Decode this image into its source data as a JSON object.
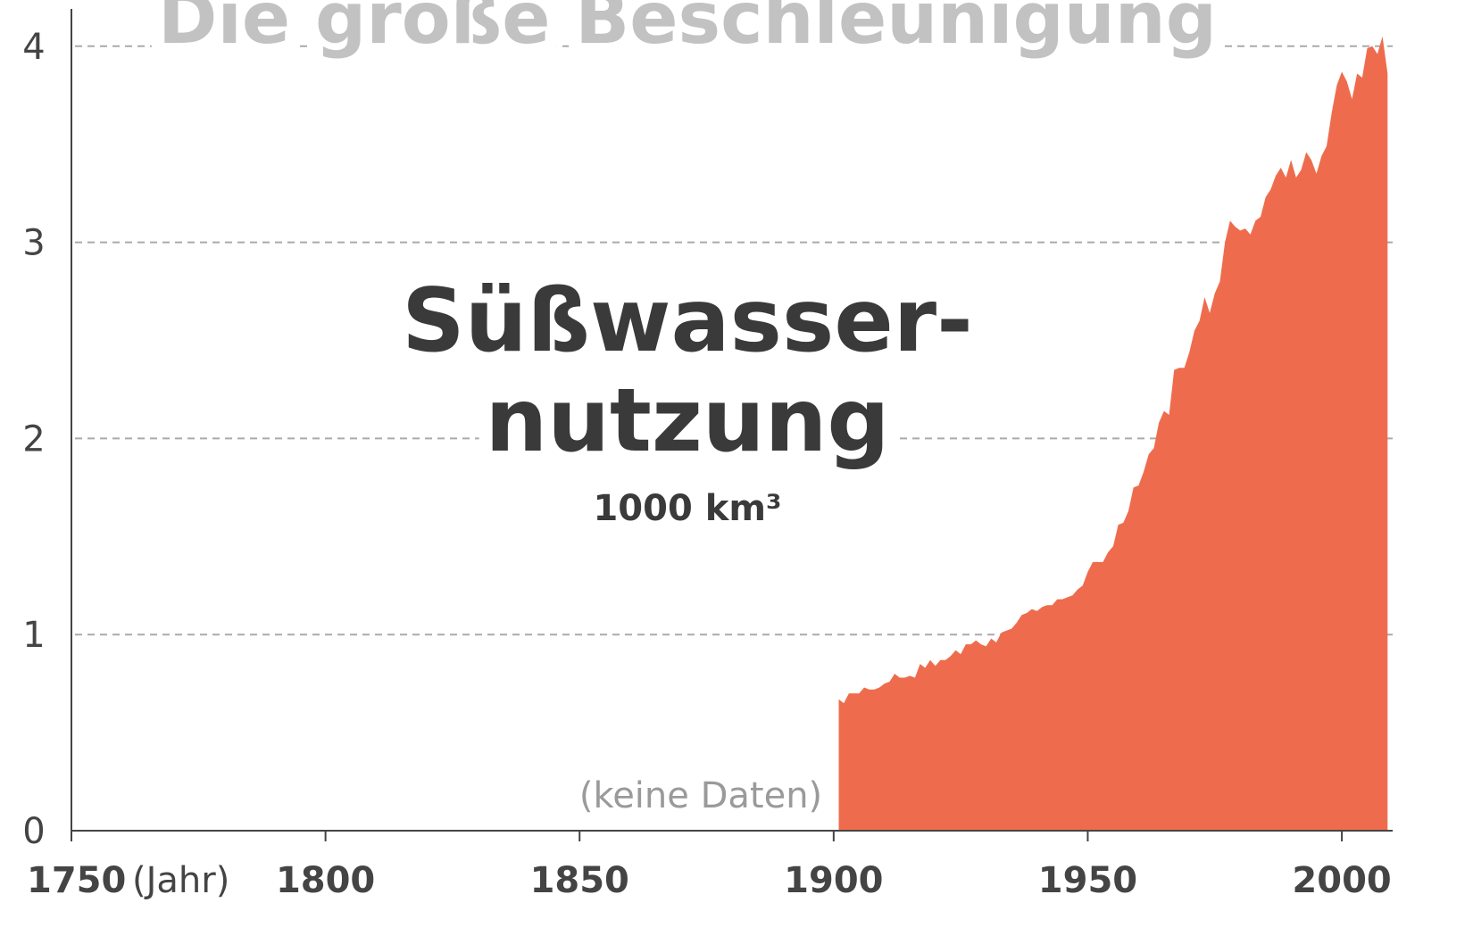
{
  "chart_data": {
    "type": "area",
    "header": "Die große Beschleunigung",
    "title_lines": [
      "Süßwasser-",
      "nutzung"
    ],
    "subtitle": "1000 km³",
    "annotation": "(keine Daten)",
    "x_label": "(Jahr)",
    "color": "#ee6c4d",
    "grid": true,
    "xlim": [
      1750,
      2010
    ],
    "ylim": [
      0,
      4.19
    ],
    "xticks": [
      1750,
      1800,
      1850,
      1900,
      1950,
      2000
    ],
    "yticks": [
      0,
      1,
      2,
      3,
      4
    ],
    "x": [
      1901,
      1902,
      1903,
      1904,
      1905,
      1906,
      1907,
      1908,
      1909,
      1910,
      1911,
      1912,
      1913,
      1914,
      1915,
      1916,
      1917,
      1918,
      1919,
      1920,
      1921,
      1922,
      1923,
      1924,
      1925,
      1926,
      1927,
      1928,
      1929,
      1930,
      1931,
      1932,
      1933,
      1934,
      1935,
      1936,
      1937,
      1938,
      1939,
      1940,
      1941,
      1942,
      1943,
      1944,
      1945,
      1946,
      1947,
      1948,
      1949,
      1950,
      1951,
      1952,
      1953,
      1954,
      1955,
      1956,
      1957,
      1958,
      1959,
      1960,
      1961,
      1962,
      1963,
      1964,
      1965,
      1966,
      1967,
      1968,
      1969,
      1970,
      1971,
      1972,
      1973,
      1974,
      1975,
      1976,
      1977,
      1978,
      1979,
      1980,
      1981,
      1982,
      1983,
      1984,
      1985,
      1986,
      1987,
      1988,
      1989,
      1990,
      1991,
      1992,
      1993,
      1994,
      1995,
      1996,
      1997,
      1998,
      1999,
      2000,
      2001,
      2002,
      2003,
      2004,
      2005,
      2006,
      2007,
      2008,
      2009
    ],
    "values": [
      0.67,
      0.65,
      0.7,
      0.7,
      0.7,
      0.73,
      0.72,
      0.72,
      0.73,
      0.75,
      0.76,
      0.8,
      0.78,
      0.78,
      0.79,
      0.78,
      0.85,
      0.83,
      0.87,
      0.84,
      0.87,
      0.87,
      0.89,
      0.92,
      0.9,
      0.95,
      0.95,
      0.97,
      0.95,
      0.94,
      0.98,
      0.96,
      1.01,
      1.02,
      1.03,
      1.06,
      1.1,
      1.11,
      1.13,
      1.12,
      1.14,
      1.15,
      1.15,
      1.18,
      1.18,
      1.19,
      1.2,
      1.23,
      1.25,
      1.32,
      1.37,
      1.37,
      1.37,
      1.42,
      1.45,
      1.56,
      1.57,
      1.63,
      1.75,
      1.76,
      1.83,
      1.92,
      1.95,
      2.08,
      2.14,
      2.12,
      2.35,
      2.36,
      2.36,
      2.44,
      2.55,
      2.6,
      2.72,
      2.64,
      2.74,
      2.8,
      3.0,
      3.11,
      3.08,
      3.06,
      3.07,
      3.04,
      3.11,
      3.13,
      3.23,
      3.27,
      3.34,
      3.38,
      3.33,
      3.42,
      3.33,
      3.37,
      3.46,
      3.42,
      3.35,
      3.44,
      3.49,
      3.66,
      3.8,
      3.87,
      3.82,
      3.73,
      3.86,
      3.84,
      3.99,
      4.0,
      3.96,
      4.05,
      3.86
    ]
  }
}
